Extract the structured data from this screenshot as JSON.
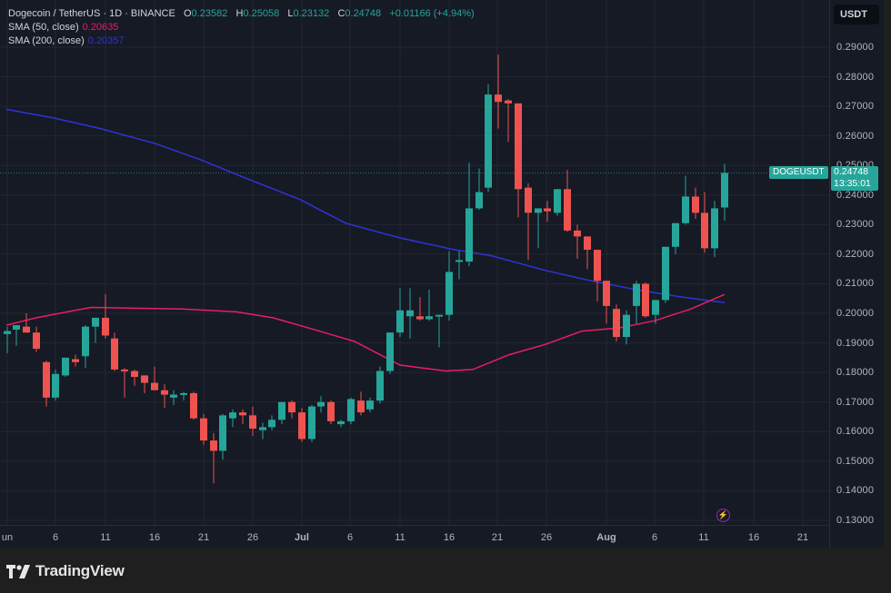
{
  "header": {
    "symbol": "Dogecoin / TetherUS · 1D · BINANCE",
    "o_label": "O",
    "o_value": "0.23582",
    "h_label": "H",
    "h_value": "0.25058",
    "l_label": "L",
    "l_value": "0.23132",
    "c_label": "C",
    "c_value": "0.24748",
    "change": "+0.01166 (+4.94%)"
  },
  "indicators": [
    {
      "label": "SMA (50, close)",
      "value": "0.20635",
      "color": "#e91e63"
    },
    {
      "label": "SMA (200, close)",
      "value": "0.20357",
      "color": "#2f34d6"
    }
  ],
  "currency_button": "USDT",
  "last_price": {
    "symbol": "DOGEUSDT",
    "price": "0.24748",
    "countdown": "13:35:01"
  },
  "brand": {
    "name": "TradingView"
  },
  "colors": {
    "up": "#26a69a",
    "down": "#ef5350",
    "sma50": "#e91e63",
    "sma200": "#2f34d6",
    "background": "#161a25",
    "grid": "#232733"
  },
  "chart_data": {
    "type": "candlestick",
    "title": "Dogecoin / TetherUS · 1D · BINANCE",
    "ylabel": "USDT",
    "ylim": [
      0.125,
      0.295
    ],
    "grid": true,
    "price_ticks": [
      "0.29000",
      "0.28000",
      "0.27000",
      "0.26000",
      "0.25000",
      "0.24000",
      "0.23000",
      "0.22000",
      "0.21000",
      "0.20000",
      "0.19000",
      "0.18000",
      "0.17000",
      "0.16000",
      "0.15000",
      "0.14000",
      "0.13000"
    ],
    "time_ticks": [
      {
        "label": "un",
        "x": 8,
        "bold": false
      },
      {
        "label": "6",
        "x": 61,
        "bold": false
      },
      {
        "label": "11",
        "x": 116,
        "bold": false
      },
      {
        "label": "16",
        "x": 170,
        "bold": false
      },
      {
        "label": "21",
        "x": 224,
        "bold": false
      },
      {
        "label": "26",
        "x": 278,
        "bold": false
      },
      {
        "label": "Jul",
        "x": 332,
        "bold": true
      },
      {
        "label": "6",
        "x": 385,
        "bold": false
      },
      {
        "label": "11",
        "x": 440,
        "bold": false
      },
      {
        "label": "16",
        "x": 494,
        "bold": false
      },
      {
        "label": "21",
        "x": 547,
        "bold": false
      },
      {
        "label": "26",
        "x": 601,
        "bold": false
      },
      {
        "label": "Aug",
        "x": 667,
        "bold": true
      },
      {
        "label": "6",
        "x": 720,
        "bold": false
      },
      {
        "label": "11",
        "x": 774,
        "bold": false
      },
      {
        "label": "16",
        "x": 829,
        "bold": false
      },
      {
        "label": "21",
        "x": 883,
        "bold": false
      }
    ],
    "candles": [
      {
        "x": 8,
        "o": 0.193,
        "h": 0.1955,
        "l": 0.1865,
        "c": 0.194
      },
      {
        "x": 18,
        "o": 0.1945,
        "h": 0.196,
        "l": 0.189,
        "c": 0.196
      },
      {
        "x": 29,
        "o": 0.1955,
        "h": 0.2,
        "l": 0.1935,
        "c": 0.1935
      },
      {
        "x": 40,
        "o": 0.1935,
        "h": 0.1955,
        "l": 0.187,
        "c": 0.188
      },
      {
        "x": 51,
        "o": 0.1835,
        "h": 0.184,
        "l": 0.1685,
        "c": 0.1715
      },
      {
        "x": 61,
        "o": 0.1715,
        "h": 0.181,
        "l": 0.1705,
        "c": 0.1795
      },
      {
        "x": 72,
        "o": 0.179,
        "h": 0.1845,
        "l": 0.1785,
        "c": 0.185
      },
      {
        "x": 83,
        "o": 0.1845,
        "h": 0.186,
        "l": 0.182,
        "c": 0.1835
      },
      {
        "x": 94,
        "o": 0.1855,
        "h": 0.196,
        "l": 0.1815,
        "c": 0.1955
      },
      {
        "x": 105,
        "o": 0.1955,
        "h": 0.1985,
        "l": 0.19,
        "c": 0.1985
      },
      {
        "x": 116,
        "o": 0.1985,
        "h": 0.2065,
        "l": 0.1915,
        "c": 0.1925
      },
      {
        "x": 126,
        "o": 0.1915,
        "h": 0.1935,
        "l": 0.1805,
        "c": 0.181
      },
      {
        "x": 137,
        "o": 0.181,
        "h": 0.1815,
        "l": 0.1715,
        "c": 0.1805
      },
      {
        "x": 148,
        "o": 0.1805,
        "h": 0.181,
        "l": 0.1755,
        "c": 0.1785
      },
      {
        "x": 159,
        "o": 0.179,
        "h": 0.179,
        "l": 0.173,
        "c": 0.1765
      },
      {
        "x": 170,
        "o": 0.1765,
        "h": 0.182,
        "l": 0.175,
        "c": 0.174
      },
      {
        "x": 181,
        "o": 0.174,
        "h": 0.176,
        "l": 0.168,
        "c": 0.1725
      },
      {
        "x": 191,
        "o": 0.1715,
        "h": 0.174,
        "l": 0.169,
        "c": 0.1725
      },
      {
        "x": 202,
        "o": 0.1725,
        "h": 0.1735,
        "l": 0.1705,
        "c": 0.173
      },
      {
        "x": 213,
        "o": 0.173,
        "h": 0.1735,
        "l": 0.164,
        "c": 0.1645
      },
      {
        "x": 224,
        "o": 0.1645,
        "h": 0.166,
        "l": 0.1555,
        "c": 0.157
      },
      {
        "x": 235,
        "o": 0.157,
        "h": 0.1595,
        "l": 0.1425,
        "c": 0.1535
      },
      {
        "x": 245,
        "o": 0.1535,
        "h": 0.166,
        "l": 0.1505,
        "c": 0.1655
      },
      {
        "x": 256,
        "o": 0.1645,
        "h": 0.1675,
        "l": 0.1615,
        "c": 0.1665
      },
      {
        "x": 267,
        "o": 0.1665,
        "h": 0.1675,
        "l": 0.1625,
        "c": 0.1655
      },
      {
        "x": 278,
        "o": 0.1655,
        "h": 0.1685,
        "l": 0.1585,
        "c": 0.161
      },
      {
        "x": 289,
        "o": 0.1605,
        "h": 0.163,
        "l": 0.1575,
        "c": 0.1615
      },
      {
        "x": 299,
        "o": 0.1615,
        "h": 0.1655,
        "l": 0.1605,
        "c": 0.164
      },
      {
        "x": 310,
        "o": 0.164,
        "h": 0.17,
        "l": 0.1625,
        "c": 0.17
      },
      {
        "x": 321,
        "o": 0.17,
        "h": 0.1705,
        "l": 0.1645,
        "c": 0.1665
      },
      {
        "x": 332,
        "o": 0.1665,
        "h": 0.168,
        "l": 0.1565,
        "c": 0.1575
      },
      {
        "x": 343,
        "o": 0.1575,
        "h": 0.169,
        "l": 0.1565,
        "c": 0.1685
      },
      {
        "x": 353,
        "o": 0.1685,
        "h": 0.172,
        "l": 0.1665,
        "c": 0.17
      },
      {
        "x": 364,
        "o": 0.17,
        "h": 0.1705,
        "l": 0.1625,
        "c": 0.1635
      },
      {
        "x": 375,
        "o": 0.1625,
        "h": 0.164,
        "l": 0.1615,
        "c": 0.1635
      },
      {
        "x": 386,
        "o": 0.1635,
        "h": 0.1715,
        "l": 0.1625,
        "c": 0.171
      },
      {
        "x": 397,
        "o": 0.1705,
        "h": 0.1735,
        "l": 0.1655,
        "c": 0.1665
      },
      {
        "x": 407,
        "o": 0.1675,
        "h": 0.1715,
        "l": 0.1665,
        "c": 0.1705
      },
      {
        "x": 418,
        "o": 0.1705,
        "h": 0.182,
        "l": 0.1695,
        "c": 0.1805
      },
      {
        "x": 429,
        "o": 0.1805,
        "h": 0.1935,
        "l": 0.1795,
        "c": 0.1935
      },
      {
        "x": 440,
        "o": 0.1935,
        "h": 0.2085,
        "l": 0.192,
        "c": 0.201
      },
      {
        "x": 451,
        "o": 0.199,
        "h": 0.2085,
        "l": 0.1915,
        "c": 0.201
      },
      {
        "x": 462,
        "o": 0.199,
        "h": 0.2055,
        "l": 0.1975,
        "c": 0.198
      },
      {
        "x": 472,
        "o": 0.198,
        "h": 0.208,
        "l": 0.1975,
        "c": 0.199
      },
      {
        "x": 483,
        "o": 0.199,
        "h": 0.1995,
        "l": 0.1885,
        "c": 0.1995
      },
      {
        "x": 494,
        "o": 0.1995,
        "h": 0.221,
        "l": 0.1975,
        "c": 0.214
      },
      {
        "x": 505,
        "o": 0.218,
        "h": 0.221,
        "l": 0.2115,
        "c": 0.218
      },
      {
        "x": 516,
        "o": 0.2175,
        "h": 0.251,
        "l": 0.216,
        "c": 0.2355
      },
      {
        "x": 527,
        "o": 0.2355,
        "h": 0.249,
        "l": 0.235,
        "c": 0.241
      },
      {
        "x": 537,
        "o": 0.2425,
        "h": 0.2775,
        "l": 0.241,
        "c": 0.274
      },
      {
        "x": 548,
        "o": 0.274,
        "h": 0.2875,
        "l": 0.2625,
        "c": 0.2715
      },
      {
        "x": 559,
        "o": 0.272,
        "h": 0.2725,
        "l": 0.258,
        "c": 0.271
      },
      {
        "x": 570,
        "o": 0.271,
        "h": 0.271,
        "l": 0.2325,
        "c": 0.242
      },
      {
        "x": 581,
        "o": 0.2425,
        "h": 0.244,
        "l": 0.218,
        "c": 0.234
      },
      {
        "x": 592,
        "o": 0.234,
        "h": 0.233,
        "l": 0.222,
        "c": 0.2355
      },
      {
        "x": 602,
        "o": 0.2355,
        "h": 0.238,
        "l": 0.231,
        "c": 0.2345
      },
      {
        "x": 613,
        "o": 0.234,
        "h": 0.242,
        "l": 0.233,
        "c": 0.242
      },
      {
        "x": 624,
        "o": 0.242,
        "h": 0.2485,
        "l": 0.2275,
        "c": 0.228
      },
      {
        "x": 635,
        "o": 0.228,
        "h": 0.23,
        "l": 0.2185,
        "c": 0.226
      },
      {
        "x": 646,
        "o": 0.226,
        "h": 0.224,
        "l": 0.215,
        "c": 0.2215
      },
      {
        "x": 657,
        "o": 0.2215,
        "h": 0.221,
        "l": 0.204,
        "c": 0.211
      },
      {
        "x": 667,
        "o": 0.211,
        "h": 0.209,
        "l": 0.1965,
        "c": 0.2025
      },
      {
        "x": 678,
        "o": 0.2015,
        "h": 0.203,
        "l": 0.1905,
        "c": 0.192
      },
      {
        "x": 689,
        "o": 0.192,
        "h": 0.201,
        "l": 0.1895,
        "c": 0.1995
      },
      {
        "x": 700,
        "o": 0.2025,
        "h": 0.211,
        "l": 0.1965,
        "c": 0.21
      },
      {
        "x": 710,
        "o": 0.21,
        "h": 0.2105,
        "l": 0.1985,
        "c": 0.199
      },
      {
        "x": 721,
        "o": 0.1995,
        "h": 0.2045,
        "l": 0.1965,
        "c": 0.2045
      },
      {
        "x": 732,
        "o": 0.2045,
        "h": 0.2225,
        "l": 0.2035,
        "c": 0.2225
      },
      {
        "x": 743,
        "o": 0.2225,
        "h": 0.2265,
        "l": 0.22,
        "c": 0.2305
      },
      {
        "x": 754,
        "o": 0.2305,
        "h": 0.2465,
        "l": 0.23,
        "c": 0.2395
      },
      {
        "x": 765,
        "o": 0.2395,
        "h": 0.2425,
        "l": 0.232,
        "c": 0.234
      },
      {
        "x": 775,
        "o": 0.234,
        "h": 0.241,
        "l": 0.2205,
        "c": 0.222
      },
      {
        "x": 786,
        "o": 0.222,
        "h": 0.238,
        "l": 0.219,
        "c": 0.2355
      },
      {
        "x": 797,
        "o": 0.2358,
        "h": 0.2506,
        "l": 0.2313,
        "c": 0.2475
      }
    ],
    "sma50": [
      [
        7,
        0.196
      ],
      [
        40,
        0.1985
      ],
      [
        100,
        0.202
      ],
      [
        200,
        0.2015
      ],
      [
        260,
        0.2005
      ],
      [
        300,
        0.1985
      ],
      [
        340,
        0.195
      ],
      [
        390,
        0.1905
      ],
      [
        440,
        0.1825
      ],
      [
        490,
        0.1805
      ],
      [
        520,
        0.181
      ],
      [
        560,
        0.186
      ],
      [
        600,
        0.1895
      ],
      [
        640,
        0.194
      ],
      [
        680,
        0.195
      ],
      [
        720,
        0.1975
      ],
      [
        760,
        0.2015
      ],
      [
        797,
        0.2064
      ]
    ],
    "sma200": [
      [
        7,
        0.269
      ],
      [
        60,
        0.266
      ],
      [
        110,
        0.2625
      ],
      [
        170,
        0.2575
      ],
      [
        220,
        0.252
      ],
      [
        280,
        0.2445
      ],
      [
        330,
        0.2385
      ],
      [
        380,
        0.2305
      ],
      [
        440,
        0.2255
      ],
      [
        500,
        0.2215
      ],
      [
        540,
        0.2195
      ],
      [
        600,
        0.2145
      ],
      [
        650,
        0.211
      ],
      [
        700,
        0.208
      ],
      [
        750,
        0.2055
      ],
      [
        797,
        0.2036
      ]
    ]
  }
}
